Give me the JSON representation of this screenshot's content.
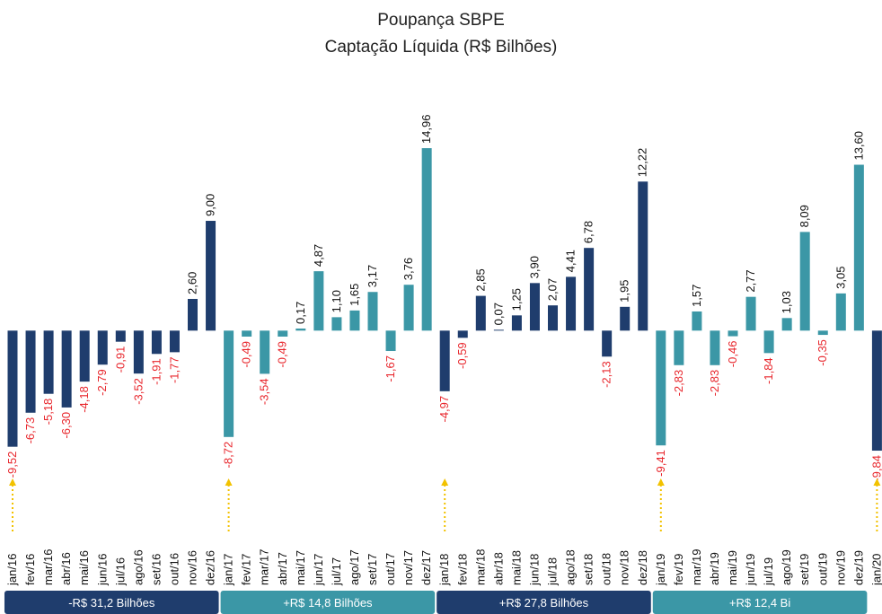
{
  "chart_data": {
    "type": "bar",
    "title": "Poupança SBPE",
    "subtitle": "Captação Líquida (R$ Bilhões)",
    "ylim": [
      -10,
      15
    ],
    "series": [
      {
        "name": "-R$ 31,2 Bilhões",
        "color": "#1f3d6d",
        "categories": [
          "jan/16",
          "fev/16",
          "mar/16",
          "abr/16",
          "mai/16",
          "jun/16",
          "jul/16",
          "ago/16",
          "set/16",
          "out/16",
          "nov/16",
          "dez/16"
        ],
        "values": [
          -9.52,
          -6.73,
          -5.18,
          -6.3,
          -4.18,
          -2.79,
          -0.91,
          -3.52,
          -1.91,
          -1.77,
          2.6,
          9.0
        ],
        "value_labels": [
          "-9,52",
          "-6,73",
          "-5,18",
          "-6,30",
          "-4,18",
          "-2,79",
          "-0,91",
          "-3,52",
          "-1,91",
          "-1,77",
          "2,60",
          "9,00"
        ]
      },
      {
        "name": "+R$ 14,8 Bilhões",
        "color": "#3b97a6",
        "categories": [
          "jan/17",
          "fev/17",
          "mar/17",
          "abr/17",
          "mai/17",
          "jun/17",
          "jul/17",
          "ago/17",
          "set/17",
          "out/17",
          "nov/17",
          "dez/17"
        ],
        "values": [
          -8.72,
          -0.49,
          -3.54,
          -0.49,
          0.17,
          4.87,
          1.1,
          1.65,
          3.17,
          -1.67,
          3.76,
          14.96
        ],
        "value_labels": [
          "-8,72",
          "-0,49",
          "-3,54",
          "-0,49",
          "0,17",
          "4,87",
          "1,10",
          "1,65",
          "3,17",
          "-1,67",
          "3,76",
          "14,96"
        ]
      },
      {
        "name": "+R$ 27,8 Bilhões",
        "color": "#1f3d6d",
        "categories": [
          "jan/18",
          "fev/18",
          "mar/18",
          "abr/18",
          "mai/18",
          "jun/18",
          "jul/18",
          "ago/18",
          "set/18",
          "out/18",
          "nov/18",
          "dez/18"
        ],
        "values": [
          -4.97,
          -0.59,
          2.85,
          0.07,
          1.25,
          3.9,
          2.07,
          4.41,
          6.78,
          -2.13,
          1.95,
          12.22
        ],
        "value_labels": [
          "-4,97",
          "-0,59",
          "2,85",
          "0,07",
          "1,25",
          "3,90",
          "2,07",
          "4,41",
          "6,78",
          "-2,13",
          "1,95",
          "12,22"
        ]
      },
      {
        "name": "+R$ 12,4 Bi",
        "color": "#3b97a6",
        "categories": [
          "jan/19",
          "fev/19",
          "mar/19",
          "abr/19",
          "mai/19",
          "jun/19",
          "jul/19",
          "ago/19",
          "set/19",
          "out/19",
          "nov/19",
          "dez/19"
        ],
        "values": [
          -9.41,
          -2.83,
          1.57,
          -2.83,
          -0.46,
          2.77,
          -1.84,
          1.03,
          8.09,
          -0.35,
          3.05,
          13.6
        ],
        "value_labels": [
          "-9,41",
          "-2,83",
          "1,57",
          "-2,83",
          "-0,46",
          "2,77",
          "-1,84",
          "1,03",
          "8,09",
          "-0,35",
          "3,05",
          "13,60"
        ]
      },
      {
        "color": "#1f3d6d",
        "categories": [
          "jan/20"
        ],
        "values": [
          -9.84
        ],
        "value_labels": [
          "-9,84"
        ]
      }
    ]
  }
}
